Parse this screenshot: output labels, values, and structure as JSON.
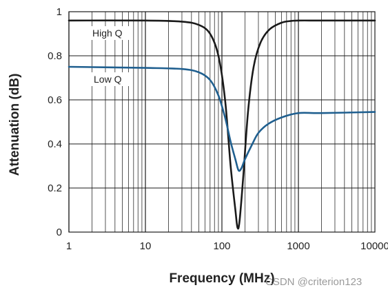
{
  "chart_data": {
    "type": "line",
    "title": "",
    "xlabel": "Frequency (MHz)",
    "ylabel": "Attenuation (dB)",
    "x_scale": "log",
    "xlim": [
      1,
      10000
    ],
    "ylim": [
      0,
      1
    ],
    "x_ticks": [
      1,
      10,
      100,
      1000,
      10000
    ],
    "x_tick_labels": [
      "1",
      "10",
      "100",
      "1000",
      "10000"
    ],
    "y_ticks": [
      0,
      0.2,
      0.4,
      0.6,
      0.8,
      1
    ],
    "y_tick_labels": [
      "0",
      "0.2",
      "0.4",
      "0.6",
      "0.8",
      "1"
    ],
    "grid": true,
    "series": [
      {
        "name": "High Q",
        "color": "#1a1a1a",
        "x": [
          1,
          10,
          30,
          50,
          70,
          90,
          110,
          130,
          150,
          160,
          170,
          190,
          220,
          260,
          320,
          420,
          600,
          800,
          1000,
          2000,
          10000
        ],
        "y": [
          0.96,
          0.96,
          0.955,
          0.94,
          0.9,
          0.8,
          0.6,
          0.3,
          0.1,
          0.02,
          0.05,
          0.25,
          0.55,
          0.75,
          0.86,
          0.92,
          0.95,
          0.958,
          0.96,
          0.96,
          0.96
        ]
      },
      {
        "name": "Low Q",
        "color": "#1f5f8f",
        "x": [
          1,
          10,
          30,
          50,
          70,
          90,
          110,
          130,
          150,
          165,
          180,
          200,
          250,
          300,
          400,
          600,
          1000,
          2000,
          10000
        ],
        "y": [
          0.75,
          0.745,
          0.74,
          0.725,
          0.69,
          0.62,
          0.52,
          0.41,
          0.33,
          0.28,
          0.29,
          0.33,
          0.4,
          0.45,
          0.49,
          0.52,
          0.54,
          0.54,
          0.545
        ]
      }
    ],
    "annotations": [
      "High Q",
      "Low Q"
    ]
  },
  "watermark": "CSDN @criterion123"
}
